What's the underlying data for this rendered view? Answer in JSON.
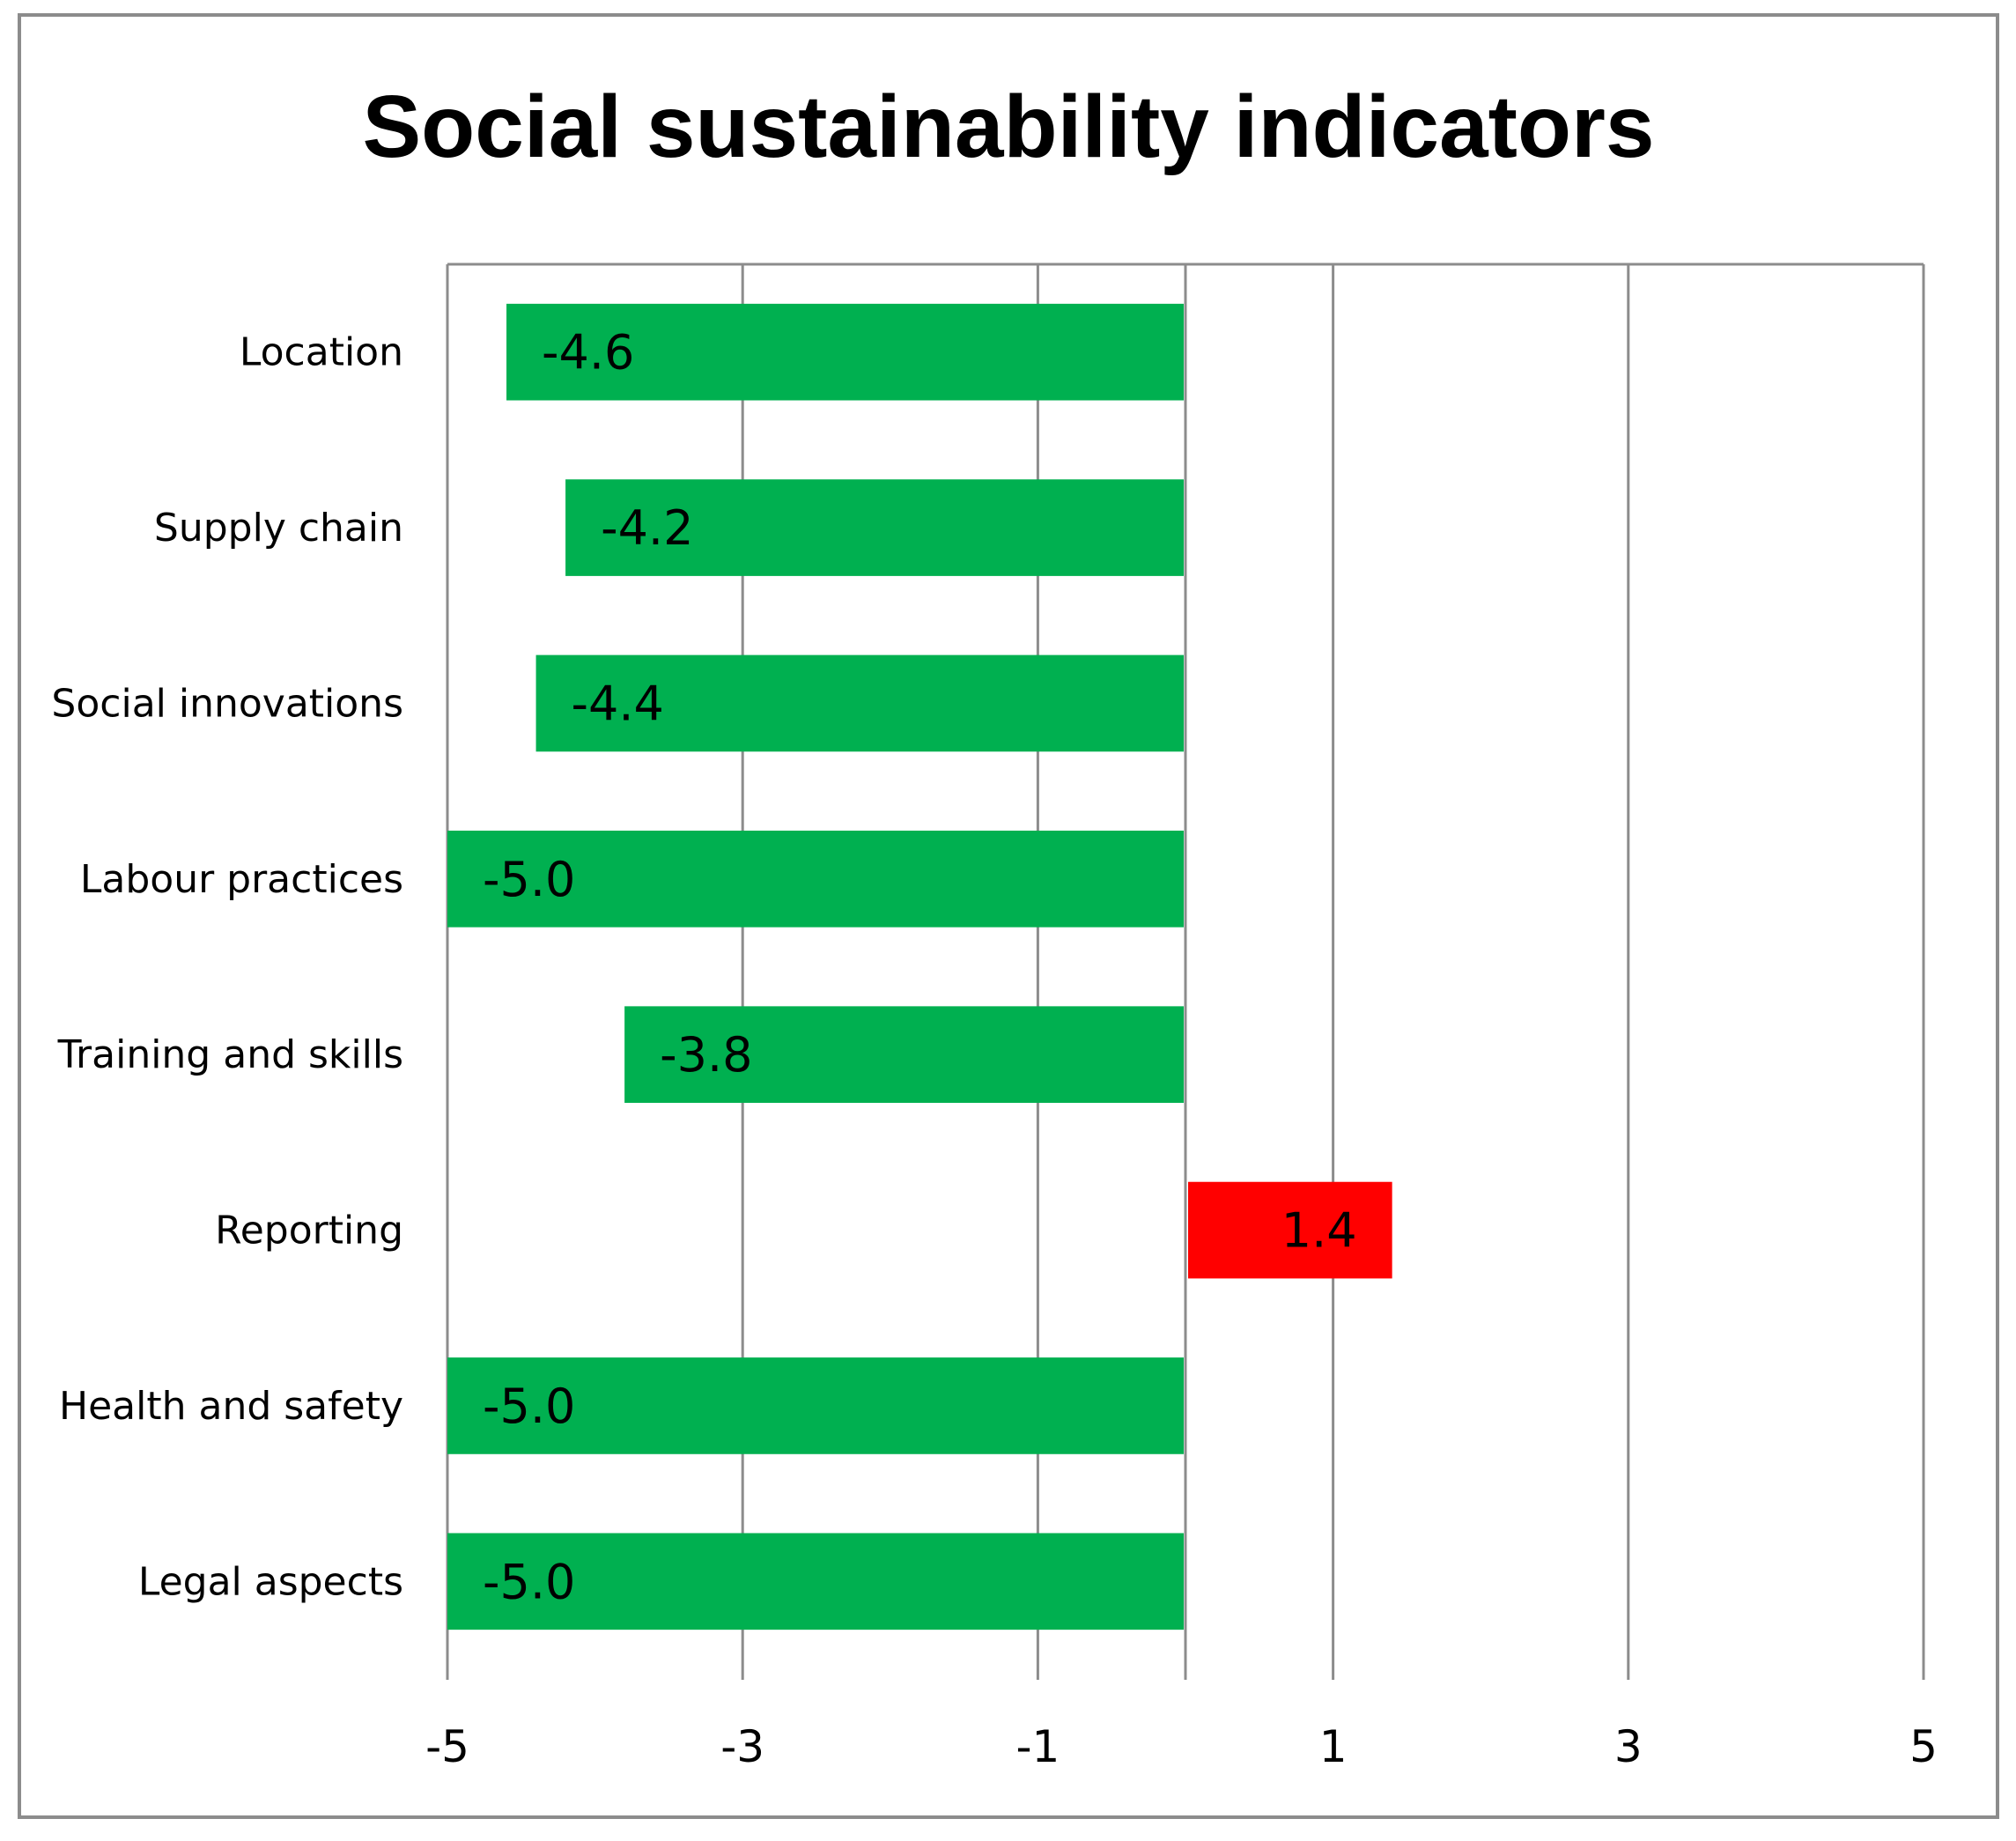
{
  "chart_data": {
    "type": "bar",
    "orientation": "horizontal",
    "title": "Social sustainability indicators",
    "xlabel": "",
    "ylabel": "",
    "categories": [
      "Location",
      "Supply chain",
      "Social innovations",
      "Labour practices",
      "Training and skills",
      "Reporting",
      "Health and safety",
      "Legal aspects"
    ],
    "values": [
      -4.6,
      -4.2,
      -4.4,
      -5.0,
      -3.8,
      1.4,
      -5.0,
      -5.0
    ],
    "data_labels": [
      "-4.6",
      "-4.2",
      "-4.4",
      "-5.0",
      "-3.8",
      "1.4",
      "-5.0",
      "-5.0"
    ],
    "xlim": [
      -5,
      5
    ],
    "xticks": [
      -5,
      -3,
      -1,
      1,
      3,
      5
    ],
    "xtick_labels": [
      "-5",
      "-3",
      "-1",
      "1",
      "3",
      "5"
    ],
    "grid": "vertical",
    "legend": "none",
    "colors": {
      "negative": "#00b050",
      "positive": "#ff0000",
      "grid": "#8c8c8c",
      "frame": "#8c8c8c"
    }
  }
}
